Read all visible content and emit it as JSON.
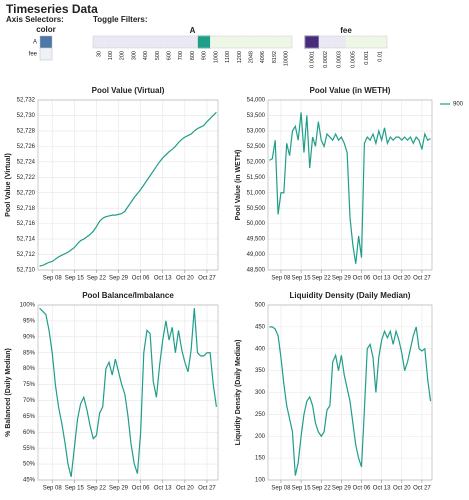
{
  "header": {
    "title": "Timeseries Data",
    "axis_selectors": "Axis Selectors:",
    "toggle_filters": "Toggle Filters:",
    "color_legend": {
      "title": "color",
      "items": [
        {
          "label": "A",
          "color": "#4c78a8"
        },
        {
          "label": "fee",
          "color": "#eef2f8"
        }
      ]
    },
    "filters": [
      {
        "title": "A",
        "labels": [
          "30",
          "100",
          "200",
          "300",
          "400",
          "500",
          "600",
          "700",
          "800",
          "900",
          "1000",
          "1100",
          "1200",
          "2048",
          "4096",
          "8192",
          "10000"
        ],
        "selected": "900",
        "color": "#1f9e89"
      },
      {
        "title": "fee",
        "labels": [
          "0.0001",
          "0.0002",
          "0.0003",
          "0.0005",
          "0.001",
          "0.01"
        ],
        "selected": "0.0001",
        "color": "#472c7a"
      }
    ]
  },
  "chart_data": [
    {
      "type": "line",
      "title": "Pool Value (Virtual)",
      "ylabel": "Pool Value (Virtual)",
      "color": "#1f9e89",
      "grid": true,
      "categories": [
        null,
        null,
        null,
        null,
        "Sep 08",
        null,
        null,
        null,
        null,
        null,
        null,
        "Sep 15",
        null,
        null,
        null,
        null,
        null,
        null,
        "Sep 22",
        null,
        null,
        null,
        null,
        null,
        null,
        "Sep 29",
        null,
        null,
        null,
        null,
        null,
        null,
        "Oct 06",
        null,
        null,
        null,
        null,
        null,
        null,
        "Oct 13",
        null,
        null,
        null,
        null,
        null,
        null,
        "Oct 20",
        null,
        null,
        null,
        null,
        null,
        null,
        "Oct 27",
        null,
        null,
        null
      ],
      "values": [
        52710.5,
        52710.6,
        52710.8,
        52711,
        52711.1,
        52711.4,
        52711.7,
        52711.9,
        52712.1,
        52712.3,
        52712.6,
        52712.9,
        52713.4,
        52713.8,
        52714,
        52714.3,
        52714.6,
        52715,
        52715.6,
        52716.3,
        52716.7,
        52716.9,
        52717,
        52717.1,
        52717.1,
        52717.2,
        52717.3,
        52717.6,
        52718.2,
        52718.8,
        52719.4,
        52719.9,
        52720.4,
        52721,
        52721.6,
        52722.2,
        52722.8,
        52723.4,
        52724,
        52724.5,
        52724.9,
        52725.3,
        52725.6,
        52726,
        52726.5,
        52726.9,
        52727.2,
        52727.4,
        52727.6,
        52728,
        52728.3,
        52728.5,
        52728.7,
        52729.2,
        52729.6,
        52730,
        52730.4
      ],
      "ylim": [
        52710,
        52732
      ],
      "yticks": [
        {
          "value": 52710,
          "label": "52,710"
        },
        {
          "value": 52712,
          "label": "52,712"
        },
        {
          "value": 52714,
          "label": "52,714"
        },
        {
          "value": 52716,
          "label": "52,716"
        },
        {
          "value": 52718,
          "label": "52,718"
        },
        {
          "value": 52720,
          "label": "52,720"
        },
        {
          "value": 52722,
          "label": "52,722"
        },
        {
          "value": 52724,
          "label": "52,724"
        },
        {
          "value": 52726,
          "label": "52,726"
        },
        {
          "value": 52728,
          "label": "52,728"
        },
        {
          "value": 52730,
          "label": "52,730"
        },
        {
          "value": 52732,
          "label": "52,732"
        }
      ]
    },
    {
      "type": "line",
      "title": "Pool Value (in WETH)",
      "ylabel": "Pool Value (in WETH)",
      "grid": true,
      "legend": "right",
      "categories": [
        null,
        null,
        null,
        null,
        "Sep 08",
        null,
        null,
        null,
        null,
        null,
        null,
        "Sep 15",
        null,
        null,
        null,
        null,
        null,
        null,
        "Sep 22",
        null,
        null,
        null,
        null,
        null,
        null,
        "Sep 29",
        null,
        null,
        null,
        null,
        null,
        null,
        "Oct 06",
        null,
        null,
        null,
        null,
        null,
        null,
        "Oct 13",
        null,
        null,
        null,
        null,
        null,
        null,
        "Oct 20",
        null,
        null,
        null,
        null,
        null,
        null,
        "Oct 27",
        null,
        null,
        null
      ],
      "series": [
        {
          "name": "900",
          "color": "#1f9e89",
          "values": [
            52050,
            52100,
            52700,
            50300,
            51000,
            51000,
            52600,
            52200,
            53000,
            53150,
            52700,
            53600,
            52300,
            53500,
            51800,
            52800,
            52500,
            53300,
            52700,
            52500,
            52900,
            52800,
            52700,
            52900,
            52700,
            52800,
            52600,
            52300,
            50200,
            49300,
            48700,
            49600,
            48900,
            52600,
            52800,
            52700,
            52900,
            52600,
            53000,
            52700,
            53100,
            52600,
            52800,
            52700,
            52800,
            52800,
            52700,
            52800,
            52700,
            52800,
            52600,
            52800,
            52700,
            52400,
            52900,
            52700,
            52750
          ]
        }
      ],
      "ylim": [
        48500,
        54000
      ],
      "yticks": [
        {
          "value": 48500,
          "label": "48,500"
        },
        {
          "value": 49000,
          "label": "49,000"
        },
        {
          "value": 49500,
          "label": "49,500"
        },
        {
          "value": 50000,
          "label": "50,000"
        },
        {
          "value": 50500,
          "label": "50,500"
        },
        {
          "value": 51000,
          "label": "51,000"
        },
        {
          "value": 51500,
          "label": "51,500"
        },
        {
          "value": 52000,
          "label": "52,000"
        },
        {
          "value": 52500,
          "label": "52,500"
        },
        {
          "value": 53000,
          "label": "53,000"
        },
        {
          "value": 53500,
          "label": "53,500"
        },
        {
          "value": 54000,
          "label": "54,000"
        }
      ]
    },
    {
      "type": "line",
      "title": "Pool Balance/Imbalance",
      "ylabel": "% Balanced (Daily Median)",
      "color": "#1f9e89",
      "grid": true,
      "categories": [
        null,
        null,
        null,
        null,
        "Sep 08",
        null,
        null,
        null,
        null,
        null,
        null,
        "Sep 15",
        null,
        null,
        null,
        null,
        null,
        null,
        "Sep 22",
        null,
        null,
        null,
        null,
        null,
        null,
        "Sep 29",
        null,
        null,
        null,
        null,
        null,
        null,
        "Oct 06",
        null,
        null,
        null,
        null,
        null,
        null,
        "Oct 13",
        null,
        null,
        null,
        null,
        null,
        null,
        "Oct 20",
        null,
        null,
        null,
        null,
        null,
        null,
        "Oct 27",
        null,
        null,
        null
      ],
      "values": [
        99,
        98,
        97,
        92,
        85,
        75,
        68,
        63,
        57,
        50,
        46,
        55,
        64,
        69,
        71,
        67,
        62,
        58,
        59,
        66,
        68,
        80,
        82,
        78,
        83,
        79,
        75,
        72,
        65,
        56,
        50,
        47,
        60,
        85,
        92,
        91,
        76,
        71,
        81,
        89,
        95,
        89,
        93,
        85,
        92,
        86,
        82,
        79,
        86,
        99,
        85,
        84,
        84,
        85,
        85,
        75,
        68
      ],
      "ylim": [
        45,
        100
      ],
      "yticks": [
        {
          "value": 45,
          "label": "45%"
        },
        {
          "value": 50,
          "label": "50%"
        },
        {
          "value": 55,
          "label": "55%"
        },
        {
          "value": 60,
          "label": "60%"
        },
        {
          "value": 65,
          "label": "65%"
        },
        {
          "value": 70,
          "label": "70%"
        },
        {
          "value": 75,
          "label": "75%"
        },
        {
          "value": 80,
          "label": "80%"
        },
        {
          "value": 85,
          "label": "85%"
        },
        {
          "value": 90,
          "label": "90%"
        },
        {
          "value": 95,
          "label": "95%"
        },
        {
          "value": 100,
          "label": "100%"
        }
      ]
    },
    {
      "type": "line",
      "title": "Liquidity Density (Daily Median)",
      "ylabel": "Liquidity Density (Daily Median)",
      "color": "#1f9e89",
      "grid": true,
      "categories": [
        null,
        null,
        null,
        null,
        "Sep 08",
        null,
        null,
        null,
        null,
        null,
        null,
        "Sep 15",
        null,
        null,
        null,
        null,
        null,
        null,
        "Sep 22",
        null,
        null,
        null,
        null,
        null,
        null,
        "Sep 29",
        null,
        null,
        null,
        null,
        null,
        null,
        "Oct 06",
        null,
        null,
        null,
        null,
        null,
        null,
        "Oct 13",
        null,
        null,
        null,
        null,
        null,
        null,
        "Oct 20",
        null,
        null,
        null,
        null,
        null,
        null,
        "Oct 27",
        null,
        null,
        null
      ],
      "values": [
        450,
        450,
        445,
        430,
        380,
        320,
        270,
        240,
        210,
        110,
        140,
        200,
        250,
        280,
        290,
        270,
        230,
        210,
        200,
        210,
        260,
        270,
        370,
        385,
        350,
        385,
        340,
        310,
        280,
        230,
        180,
        150,
        130,
        260,
        400,
        410,
        380,
        300,
        380,
        420,
        440,
        425,
        440,
        410,
        440,
        420,
        390,
        350,
        370,
        400,
        430,
        450,
        400,
        395,
        400,
        330,
        280
      ],
      "ylim": [
        100,
        500
      ],
      "yticks": [
        100,
        150,
        200,
        250,
        300,
        350,
        400,
        450,
        500
      ]
    }
  ]
}
